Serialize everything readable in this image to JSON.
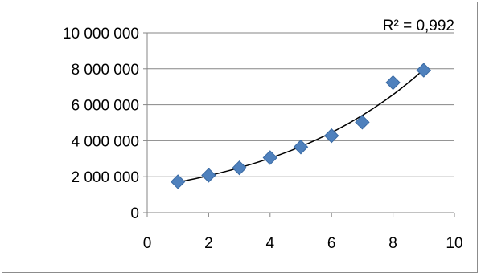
{
  "chart_data": {
    "type": "scatter",
    "title": "",
    "xlabel": "",
    "ylabel": "",
    "xlim": [
      0,
      10
    ],
    "ylim": [
      0,
      10000000
    ],
    "xticks": [
      0,
      2,
      4,
      6,
      8,
      10
    ],
    "yticks": [
      0,
      2000000,
      4000000,
      6000000,
      8000000,
      10000000
    ],
    "xtick_labels": [
      "0",
      "2",
      "4",
      "6",
      "8",
      "10"
    ],
    "ytick_labels": [
      "0",
      "2 000 000",
      "4 000 000",
      "6 000 000",
      "8 000 000",
      "10 000 000"
    ],
    "grid": "horizontal",
    "legend": "none",
    "marker": "diamond",
    "marker_color": "#4f81bd",
    "trendline": "exponential",
    "trendline_color": "#000000",
    "series": [
      {
        "x": [
          1,
          2,
          3,
          4,
          5,
          6,
          7,
          8,
          9
        ],
        "y": [
          1720000,
          2080000,
          2490000,
          3060000,
          3650000,
          4280000,
          5030000,
          7230000,
          7920000
        ]
      }
    ],
    "annotations": [
      {
        "text": "R² = 0,992",
        "position": "top-right"
      }
    ]
  }
}
